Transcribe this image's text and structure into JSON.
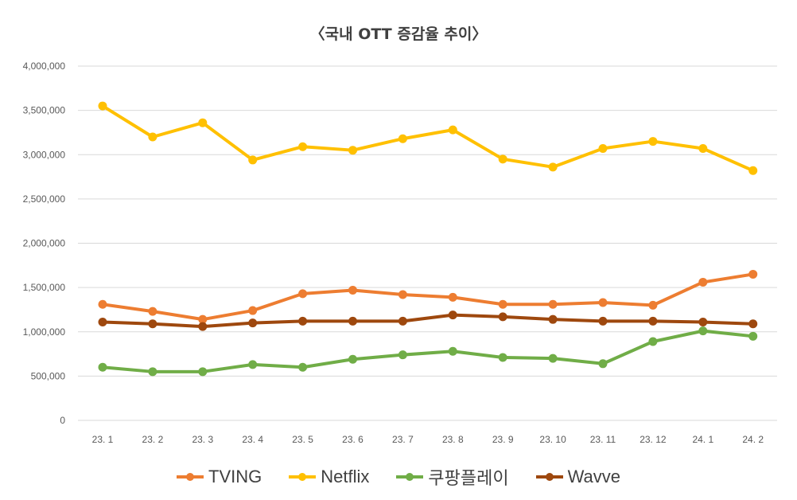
{
  "chart_data": {
    "type": "line",
    "title": "〈국내 OTT 증감율 추이〉",
    "xlabel": "",
    "ylabel": "",
    "categories": [
      "23. 1",
      "23. 2",
      "23. 3",
      "23. 4",
      "23. 5",
      "23. 6",
      "23. 7",
      "23. 8",
      "23. 9",
      "23. 10",
      "23. 11",
      "23. 12",
      "24. 1",
      "24. 2"
    ],
    "ylim": [
      0,
      4000000
    ],
    "yticks": [
      0,
      500000,
      1000000,
      1500000,
      2000000,
      2500000,
      3000000,
      3500000,
      4000000
    ],
    "ytick_labels": [
      "0",
      "500,000",
      "1,000,000",
      "1,500,000",
      "2,000,000",
      "2,500,000",
      "3,000,000",
      "3,500,000",
      "4,000,000"
    ],
    "grid": true,
    "legend_position": "bottom",
    "series": [
      {
        "name": "TVING",
        "color": "#ED7D31",
        "values": [
          1310000,
          1230000,
          1140000,
          1240000,
          1430000,
          1470000,
          1420000,
          1390000,
          1310000,
          1310000,
          1330000,
          1300000,
          1560000,
          1650000
        ]
      },
      {
        "name": "Netflix",
        "color": "#FFC000",
        "values": [
          3550000,
          3200000,
          3360000,
          2940000,
          3090000,
          3050000,
          3180000,
          3280000,
          2950000,
          2860000,
          3070000,
          3150000,
          3070000,
          2820000
        ]
      },
      {
        "name": "쿠팡플레이",
        "color": "#70AD47",
        "values": [
          600000,
          550000,
          550000,
          630000,
          600000,
          690000,
          740000,
          780000,
          710000,
          700000,
          640000,
          890000,
          1010000,
          950000
        ]
      },
      {
        "name": "Wavve",
        "color": "#9E480E",
        "values": [
          1110000,
          1090000,
          1060000,
          1100000,
          1120000,
          1120000,
          1120000,
          1190000,
          1170000,
          1140000,
          1120000,
          1120000,
          1110000,
          1090000
        ]
      }
    ]
  }
}
